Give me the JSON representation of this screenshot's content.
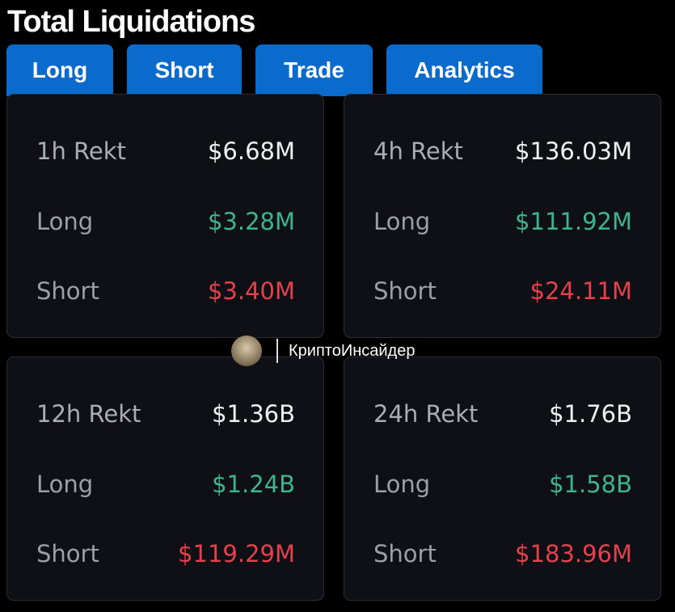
{
  "header": {
    "title": "Total Liquidations"
  },
  "tabs": [
    "Long",
    "Short",
    "Trade",
    "Analytics"
  ],
  "cards": [
    {
      "rows": [
        {
          "label": "1h Rekt",
          "value": "$6.68M"
        },
        {
          "label": "Long",
          "value": "$3.28M"
        },
        {
          "label": "Short",
          "value": "$3.40M"
        }
      ]
    },
    {
      "rows": [
        {
          "label": "4h Rekt",
          "value": "$136.03M"
        },
        {
          "label": "Long",
          "value": "$111.92M"
        },
        {
          "label": "Short",
          "value": "$24.11M"
        }
      ]
    },
    {
      "rows": [
        {
          "label": "12h Rekt",
          "value": "$1.36B"
        },
        {
          "label": "Long",
          "value": "$1.24B"
        },
        {
          "label": "Short",
          "value": "$119.29M"
        }
      ]
    },
    {
      "rows": [
        {
          "label": "24h Rekt",
          "value": "$1.76B"
        },
        {
          "label": "Long",
          "value": "$1.58B"
        },
        {
          "label": "Short",
          "value": "$183.96M"
        }
      ]
    }
  ],
  "watermark": {
    "text": "КриптоИнсайдер"
  }
}
